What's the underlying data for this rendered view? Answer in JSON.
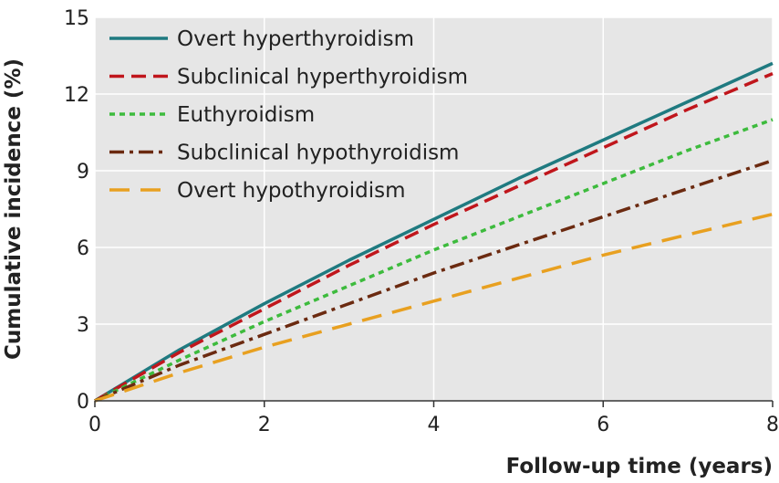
{
  "chart_data": {
    "type": "line",
    "title": "",
    "xlabel": "Follow-up time (years)",
    "ylabel": "Cumulative incidence (%)",
    "xlim": [
      0,
      8
    ],
    "ylim": [
      0,
      15
    ],
    "xticks": [
      "0",
      "2",
      "4",
      "6",
      "8"
    ],
    "yticks": [
      "0",
      "3",
      "6",
      "9",
      "12",
      "15"
    ],
    "grid": "horizontal-and-vertical",
    "legend_position": "top-left",
    "series": [
      {
        "name": "Overt hyperthyroidism",
        "color": "#1f7a80",
        "style": "solid",
        "x": [
          0,
          1,
          2,
          3,
          4,
          5,
          6,
          7,
          8
        ],
        "y": [
          0,
          2.0,
          3.8,
          5.5,
          7.1,
          8.7,
          10.2,
          11.7,
          13.2
        ]
      },
      {
        "name": "Subclinical hyperthyroidism",
        "color": "#c0161c",
        "style": "dashed",
        "x": [
          0,
          1,
          2,
          3,
          4,
          5,
          6,
          7,
          8
        ],
        "y": [
          0,
          1.9,
          3.6,
          5.3,
          6.9,
          8.4,
          9.9,
          11.4,
          12.8
        ]
      },
      {
        "name": "Euthyroidism",
        "color": "#3dbb3d",
        "style": "dotted",
        "x": [
          0,
          1,
          2,
          3,
          4,
          5,
          6,
          7,
          8
        ],
        "y": [
          0,
          1.6,
          3.1,
          4.5,
          5.9,
          7.2,
          8.5,
          9.8,
          11.0
        ]
      },
      {
        "name": "Subclinical hypothyroidism",
        "color": "#6b2a10",
        "style": "dash-dot",
        "x": [
          0,
          1,
          2,
          3,
          4,
          5,
          6,
          7,
          8
        ],
        "y": [
          0,
          1.4,
          2.6,
          3.8,
          5.0,
          6.1,
          7.2,
          8.3,
          9.4
        ]
      },
      {
        "name": "Overt hypothyroidism",
        "color": "#e8a020",
        "style": "long-dash",
        "x": [
          0,
          1,
          2,
          3,
          4,
          5,
          6,
          7,
          8
        ],
        "y": [
          0,
          1.1,
          2.1,
          3.0,
          3.9,
          4.8,
          5.7,
          6.5,
          7.3
        ]
      }
    ]
  }
}
